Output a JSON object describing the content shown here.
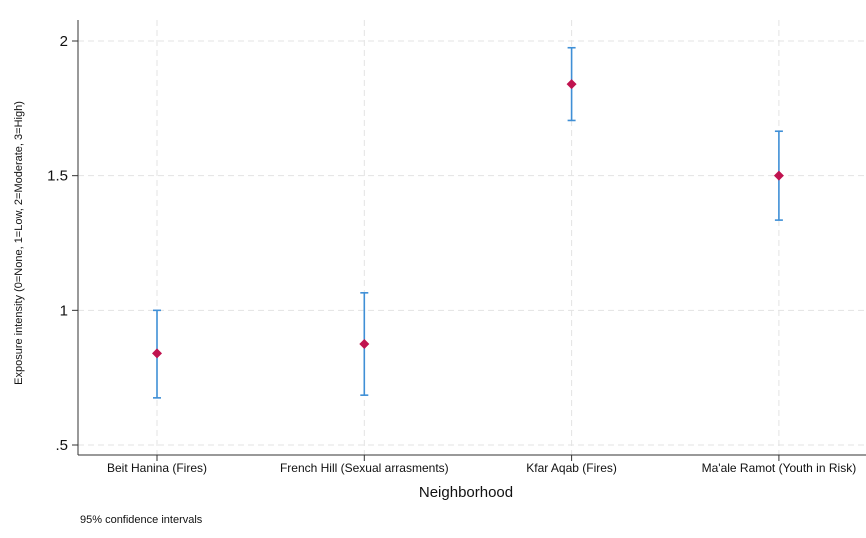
{
  "chart_data": {
    "type": "scatter",
    "title": "",
    "xlabel": "Neighborhood",
    "ylabel": "Exposure intensity (0=None, 1=Low, 2=Moderate, 3=High)",
    "categories": [
      "Beit Hanina (Fires)",
      "French Hill (Sexual arrasments)",
      "Kfar Aqab (Fires)",
      "Ma'ale Ramot (Youth in Risk)"
    ],
    "values": [
      0.84,
      0.875,
      1.84,
      1.5
    ],
    "ci_low": [
      0.675,
      0.685,
      1.705,
      1.335
    ],
    "ci_high": [
      1.0,
      1.065,
      1.975,
      1.665
    ],
    "ylim": [
      0.5,
      2.0
    ],
    "yticks": [
      0.5,
      1.0,
      1.5,
      2.0
    ],
    "ytick_labels": [
      ".5",
      "1",
      "1.5",
      "2"
    ],
    "grid": true,
    "note": "95% confidence intervals",
    "colors": {
      "point": "#c0134f",
      "errorbar": "#3f8fd6",
      "grid": "#e3e3e3",
      "axis": "#333333"
    }
  }
}
